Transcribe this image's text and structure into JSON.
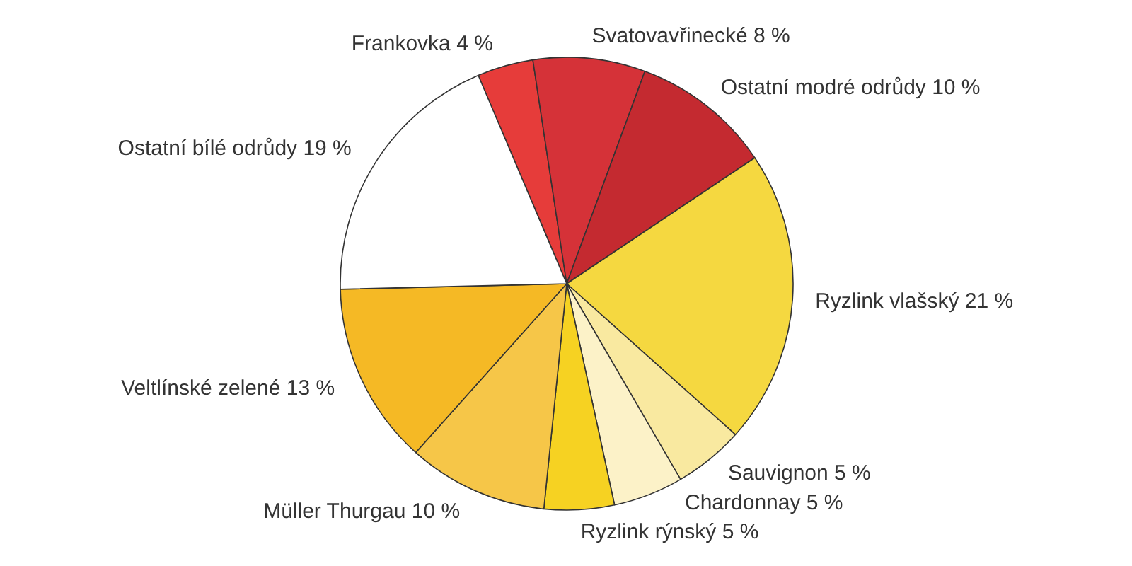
{
  "chart_data": {
    "type": "pie",
    "categories": [
      "Frankovka",
      "Svatovavřinecké",
      "Ostatní modré odrůdy",
      "Ryzlink vlašský",
      "Sauvignon",
      "Chardonnay",
      "Ryzlink rýnský",
      "Müller Thurgau",
      "Veltlínské zelené",
      "Ostatní bílé odrůdy"
    ],
    "values": [
      4,
      8,
      10,
      21,
      5,
      5,
      5,
      10,
      13,
      19
    ],
    "value_labels": [
      "4 %",
      "8 %",
      "10 %",
      "21 %",
      "5 %",
      "5 %",
      "5 %",
      "10 %",
      "13 %",
      "19 %"
    ],
    "colors": [
      "#e63c3a",
      "#d53238",
      "#c42a30",
      "#f5d840",
      "#f9e9a0",
      "#fcf2c8",
      "#f6d222",
      "#f6c648",
      "#f5b925",
      "#ffffff"
    ]
  }
}
